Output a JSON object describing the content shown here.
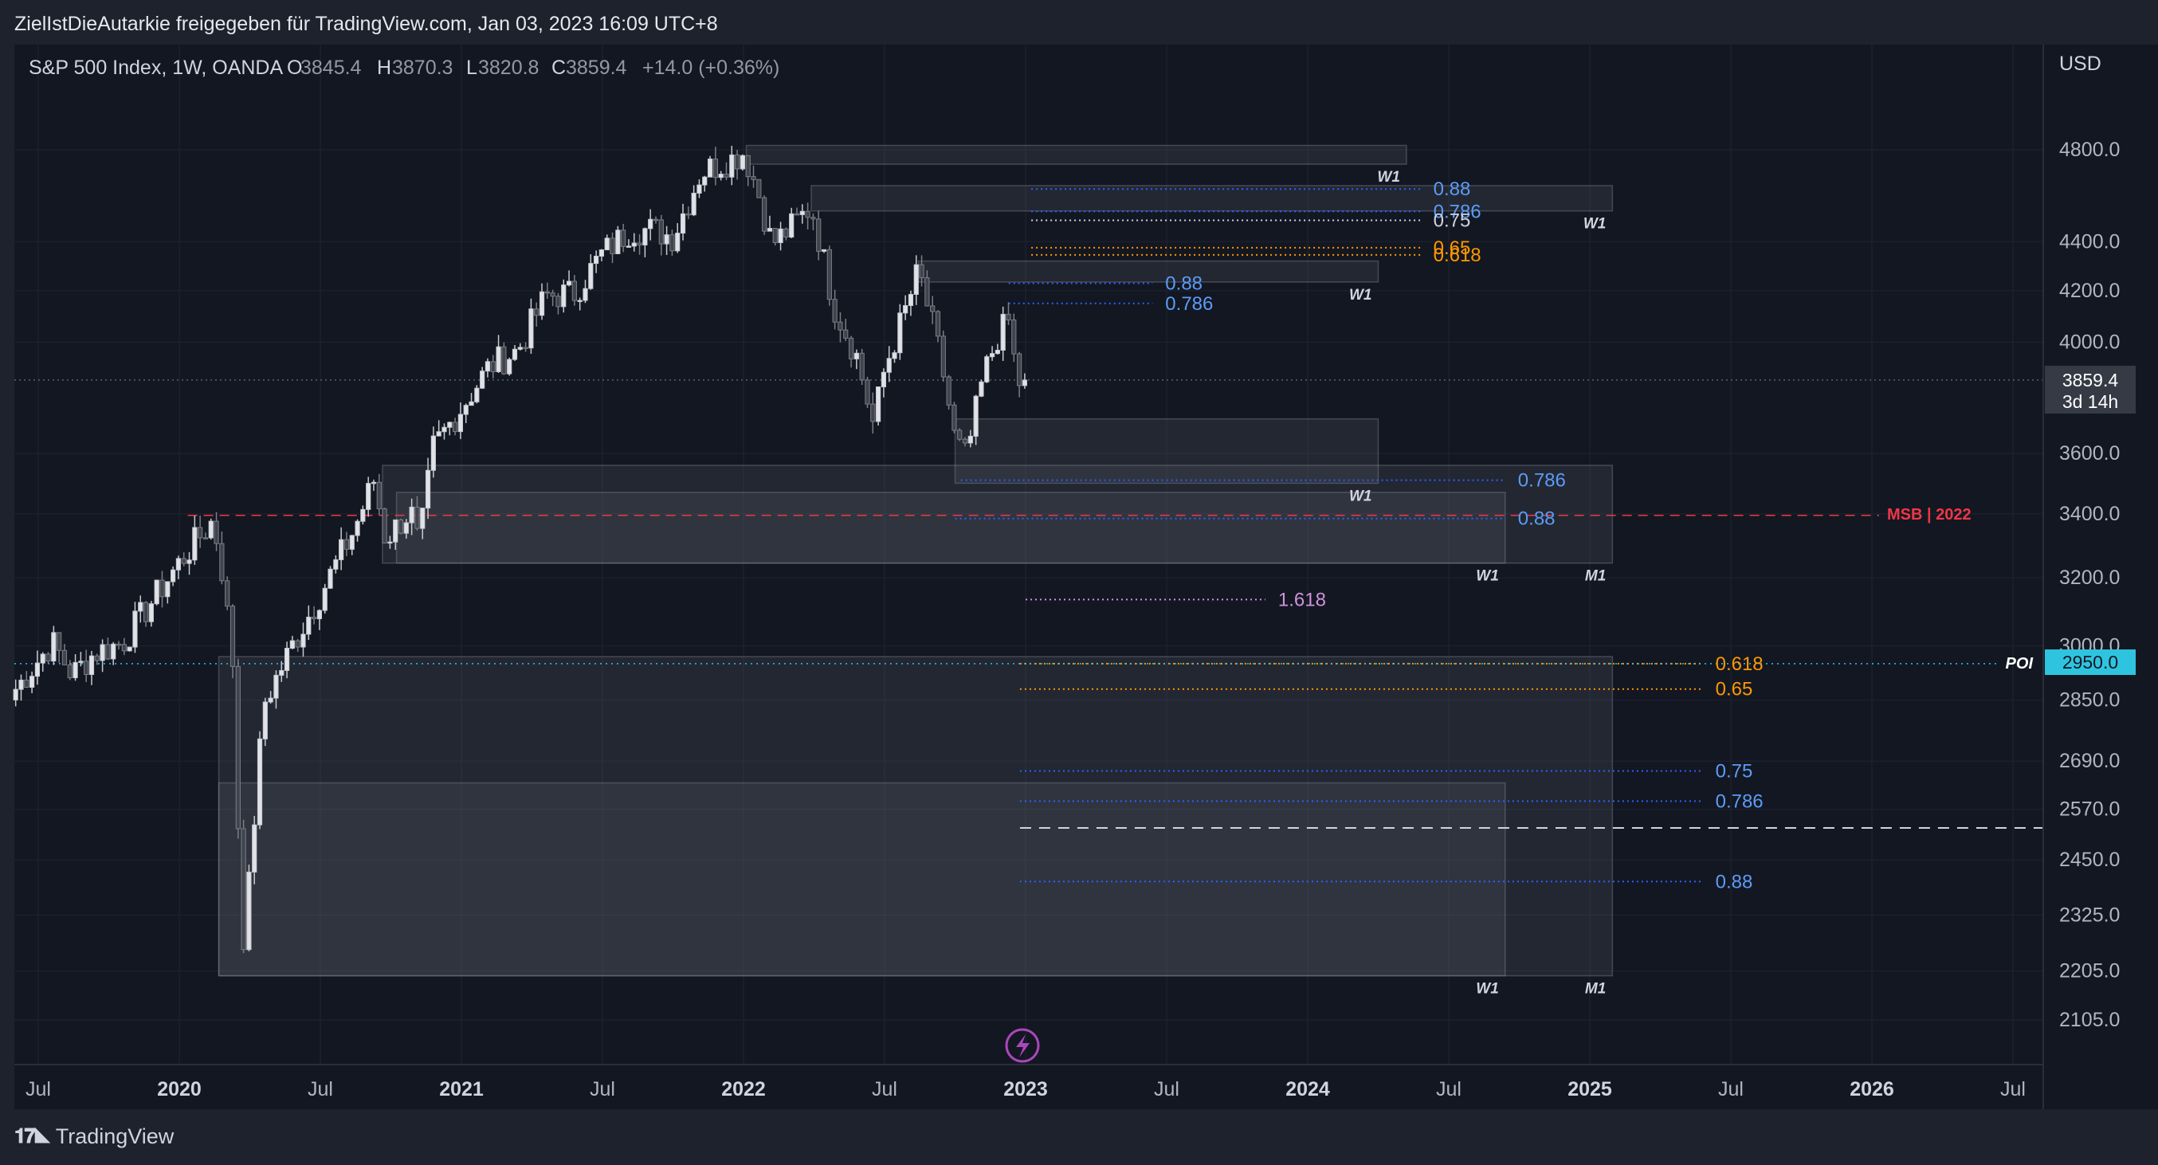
{
  "attribution": "ZielIstDieAutarkie freigegeben für TradingView.com, Jan 03, 2023 16:09 UTC+8",
  "brand": "TradingView",
  "colors": {
    "background": "#131722",
    "frame": "#1e222d",
    "grid": "#1f2430",
    "candle_up": "#c8cad0",
    "candle_down": "#7b7e86",
    "blue": "#2962ff",
    "blue_label": "#5b9cf6",
    "orange": "#ff9800",
    "purple": "#ce93d8",
    "red": "#f23645",
    "cyan": "#2ec4e0"
  },
  "chart_data": {
    "type": "candlestick",
    "title": "S&P 500 Index, 1W, OANDA",
    "header": {
      "symbol": "S&P 500 Index, 1W, OANDA",
      "o_label": "O",
      "open": "3845.4",
      "h_label": "H",
      "high": "3870.3",
      "l_label": "L",
      "low": "3820.8",
      "c_label": "C",
      "close": "3859.4",
      "change": "+14.0 (+0.36%)"
    },
    "currency": "USD",
    "y_scale": "log",
    "y_ticks": [
      "4800.0",
      "4400.0",
      "4200.0",
      "4000.0",
      "3600.0",
      "3400.0",
      "3200.0",
      "3000.0",
      "2850.0",
      "2690.0",
      "2570.0",
      "2450.0",
      "2325.0",
      "2205.0",
      "2105.0"
    ],
    "x_ticks": [
      {
        "t": 2019.5,
        "label": "Jul",
        "bold": false
      },
      {
        "t": 2020.0,
        "label": "2020",
        "bold": true
      },
      {
        "t": 2020.5,
        "label": "Jul",
        "bold": false
      },
      {
        "t": 2021.0,
        "label": "2021",
        "bold": true
      },
      {
        "t": 2021.5,
        "label": "Jul",
        "bold": false
      },
      {
        "t": 2022.0,
        "label": "2022",
        "bold": true
      },
      {
        "t": 2022.5,
        "label": "Jul",
        "bold": false
      },
      {
        "t": 2023.0,
        "label": "2023",
        "bold": true
      },
      {
        "t": 2023.5,
        "label": "Jul",
        "bold": false
      },
      {
        "t": 2024.0,
        "label": "2024",
        "bold": true
      },
      {
        "t": 2024.5,
        "label": "Jul",
        "bold": false
      },
      {
        "t": 2025.0,
        "label": "2025",
        "bold": true
      },
      {
        "t": 2025.5,
        "label": "Jul",
        "bold": false
      },
      {
        "t": 2026.0,
        "label": "2026",
        "bold": true
      },
      {
        "t": 2026.5,
        "label": "Jul",
        "bold": false
      }
    ],
    "current_price": {
      "value": 3859.4,
      "label": "3859.4",
      "countdown": "3d 14h"
    },
    "poi": {
      "value": 2950,
      "label": "2950.0",
      "tag": "POI"
    },
    "approx_weekly_closes_anchor": [
      [
        2019.42,
        2880
      ],
      [
        2019.55,
        3010
      ],
      [
        2019.62,
        2920
      ],
      [
        2019.7,
        2980
      ],
      [
        2019.8,
        3010
      ],
      [
        2019.92,
        3150
      ],
      [
        2020.02,
        3270
      ],
      [
        2020.12,
        3380
      ],
      [
        2020.15,
        3230
      ],
      [
        2020.19,
        2950
      ],
      [
        2020.21,
        2500
      ],
      [
        2020.23,
        2250
      ],
      [
        2020.26,
        2500
      ],
      [
        2020.3,
        2840
      ],
      [
        2020.4,
        3000
      ],
      [
        2020.5,
        3150
      ],
      [
        2020.62,
        3350
      ],
      [
        2020.69,
        3510
      ],
      [
        2020.73,
        3320
      ],
      [
        2020.82,
        3410
      ],
      [
        2020.85,
        3290
      ],
      [
        2020.9,
        3620
      ],
      [
        2021.0,
        3760
      ],
      [
        2021.1,
        3910
      ],
      [
        2021.2,
        3970
      ],
      [
        2021.3,
        4180
      ],
      [
        2021.4,
        4190
      ],
      [
        2021.5,
        4350
      ],
      [
        2021.6,
        4450
      ],
      [
        2021.68,
        4450
      ],
      [
        2021.75,
        4420
      ],
      [
        2021.85,
        4700
      ],
      [
        2021.96,
        4760
      ],
      [
        2022.0,
        4790
      ],
      [
        2022.05,
        4620
      ],
      [
        2022.1,
        4390
      ],
      [
        2022.17,
        4460
      ],
      [
        2022.24,
        4550
      ],
      [
        2022.32,
        4140
      ],
      [
        2022.4,
        3950
      ],
      [
        2022.46,
        3700
      ],
      [
        2022.5,
        3900
      ],
      [
        2022.58,
        4140
      ],
      [
        2022.62,
        4280
      ],
      [
        2022.7,
        3930
      ],
      [
        2022.75,
        3640
      ],
      [
        2022.79,
        3585
      ],
      [
        2022.85,
        3870
      ],
      [
        2022.9,
        4020
      ],
      [
        2022.94,
        4080
      ],
      [
        2022.97,
        3850
      ],
      [
        2023.01,
        3859
      ]
    ],
    "zones": [
      {
        "label": "W1",
        "t0": 2022.01,
        "t1": 2024.35,
        "y0": 4735,
        "y1": 4820
      },
      {
        "label": "W1",
        "t0": 2022.24,
        "t1": 2025.08,
        "y0": 4530,
        "y1": 4640
      },
      {
        "label": "W1",
        "t0": 2022.62,
        "t1": 2024.25,
        "y0": 4235,
        "y1": 4320
      },
      {
        "label": "W1",
        "t0": 2022.75,
        "t1": 2024.25,
        "y0": 3500,
        "y1": 3720
      },
      {
        "label": "M1",
        "t0": 2020.72,
        "t1": 2025.08,
        "y0": 3245,
        "y1": 3560
      },
      {
        "label": "W1",
        "t0": 2020.77,
        "t1": 2024.7,
        "y0": 3245,
        "y1": 3470
      },
      {
        "label": "M1",
        "t0": 2020.14,
        "t1": 2025.08,
        "y0": 2195,
        "y1": 2970
      },
      {
        "label": "W1",
        "t0": 2020.14,
        "t1": 2024.7,
        "y0": 2195,
        "y1": 2635
      }
    ],
    "fib_levels": [
      {
        "label": "0.88",
        "value": 4625,
        "t0": 2023.02,
        "t1": 2024.4,
        "color": "blue"
      },
      {
        "label": "0.786",
        "value": 4528,
        "t0": 2023.02,
        "t1": 2024.4,
        "color": "blue"
      },
      {
        "label": "0.75",
        "value": 4490,
        "t0": 2023.02,
        "t1": 2024.4,
        "color": "white"
      },
      {
        "label": "0.65",
        "value": 4375,
        "t0": 2023.02,
        "t1": 2024.4,
        "color": "orange"
      },
      {
        "label": "0.618",
        "value": 4345,
        "t0": 2023.02,
        "t1": 2024.4,
        "color": "orange"
      },
      {
        "label": "0.88",
        "value": 4230,
        "t0": 2022.94,
        "t1": 2023.45,
        "color": "blue"
      },
      {
        "label": "0.786",
        "value": 4150,
        "t0": 2022.94,
        "t1": 2023.45,
        "color": "blue"
      },
      {
        "label": "0.786",
        "value": 3510,
        "t0": 2022.77,
        "t1": 2024.7,
        "color": "blue"
      },
      {
        "label": "0.88",
        "value": 3385,
        "t0": 2022.75,
        "t1": 2024.7,
        "color": "blue"
      },
      {
        "label": "1.618",
        "value": 3135,
        "t0": 2023.0,
        "t1": 2023.85,
        "color": "purple"
      },
      {
        "label": "0.618",
        "value": 2950,
        "t0": 2022.98,
        "t1": 2025.4,
        "color": "orange"
      },
      {
        "label": "0.65",
        "value": 2880,
        "t0": 2022.98,
        "t1": 2025.4,
        "color": "orange"
      },
      {
        "label": "0.75",
        "value": 2665,
        "t0": 2022.98,
        "t1": 2025.4,
        "color": "blue"
      },
      {
        "label": "0.786",
        "value": 2590,
        "t0": 2022.98,
        "t1": 2025.4,
        "color": "blue"
      },
      {
        "label": "0.88",
        "value": 2400,
        "t0": 2022.98,
        "t1": 2025.4,
        "color": "blue"
      }
    ],
    "msb": {
      "label": "MSB | 2022",
      "value": 3395
    },
    "dashed_white": {
      "value": 2525
    },
    "extra_lines": [
      {
        "value": 3859.4,
        "kind": "current"
      },
      {
        "value": 2950,
        "kind": "poi"
      }
    ],
    "event_icon": {
      "t": 2023.0,
      "name": "lightning"
    }
  }
}
